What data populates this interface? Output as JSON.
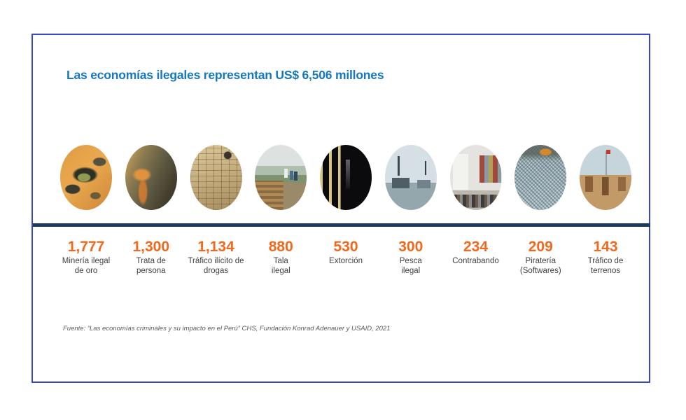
{
  "title": "Las economías ilegales representan US$ 6,506 millones",
  "source": "Fuente: “Las economías criminales y su impacto en el Perú” CHS, Fundación Konrad Adenauer y USAID, 2021",
  "colors": {
    "title_blue": "#1778be",
    "value_orange": "#f2681c",
    "divider_navy": "#1b3a5e",
    "frame_border_blue": "#3946c5",
    "label_gray": "#3f3f3f",
    "source_gray": "#5a5a5a"
  },
  "items": [
    {
      "value": "1,777",
      "line1": "Minería ilegal",
      "line2": "de oro",
      "photo": "gold-mining-photo"
    },
    {
      "value": "1,300",
      "line1": "Trata de",
      "line2": "persona",
      "photo": "human-trafficking-photo"
    },
    {
      "value": "1,134",
      "line1": "Tráfico ilícito de",
      "line2": "drogas",
      "photo": "drug-bricks-photo"
    },
    {
      "value": "880",
      "line1": "Tala",
      "line2": "ilegal",
      "photo": "illegal-logging-photo"
    },
    {
      "value": "530",
      "line1": "Extorción",
      "line2": "",
      "photo": "extortion-photo"
    },
    {
      "value": "300",
      "line1": "Pesca",
      "line2": "ilegal",
      "photo": "illegal-fishing-photo"
    },
    {
      "value": "234",
      "line1": "Contrabando",
      "line2": "",
      "photo": "contraband-photo"
    },
    {
      "value": "209",
      "line1": "Piratería",
      "line2": "(Softwares)",
      "photo": "software-piracy-photo"
    },
    {
      "value": "143",
      "line1": "Tráfico de",
      "line2": "terrenos",
      "photo": "land-trafficking-photo"
    }
  ],
  "chart_data": {
    "type": "bar",
    "title": "Las economías ilegales representan US$ 6,506 millones",
    "categories": [
      "Minería ilegal de oro",
      "Trata de persona",
      "Tráfico ilícito de drogas",
      "Tala ilegal",
      "Extorción",
      "Pesca ilegal",
      "Contrabando",
      "Piratería (Softwares)",
      "Tráfico de terrenos"
    ],
    "values": [
      1777,
      1300,
      1134,
      880,
      530,
      300,
      234,
      209,
      143
    ],
    "total": 6506,
    "unit": "US$ millones",
    "xlabel": "",
    "ylabel": "US$ millones",
    "legend": "none",
    "grid": false
  }
}
